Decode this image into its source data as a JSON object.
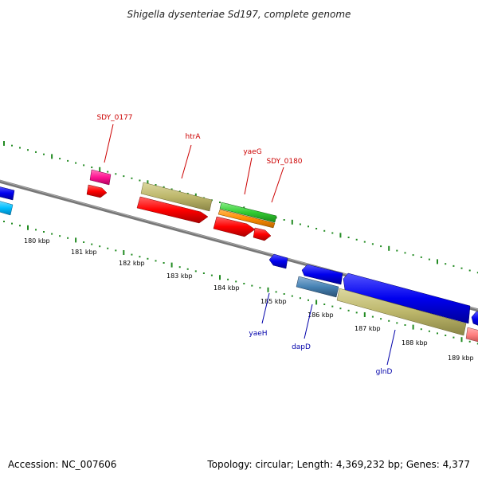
{
  "title": "Shigella dysenteriae Sd197, complete genome",
  "footer": {
    "accession": "Accession: NC_007606",
    "topology": "Topology: circular; Length: 4,369,232 bp; Genes: 4,377"
  },
  "kbp_labels": [
    "180 kbp",
    "181 kbp",
    "182 kbp",
    "183 kbp",
    "184 kbp",
    "185 kbp",
    "186 kbp",
    "187 kbp",
    "188 kbp",
    "189 kbp"
  ],
  "gene_labels_top": [
    "SDY_0177",
    "htrA",
    "yaeG",
    "SDY_0180"
  ],
  "gene_labels_bottom": [
    "yaeH",
    "dapD",
    "glnD"
  ],
  "colors": {
    "backbone": "#777777",
    "tick": "#228b22",
    "red": "#ff0000",
    "blue": "#0000ee",
    "khaki": "#bdb76b",
    "green": "#33cc33",
    "orange": "#ff8c00",
    "magenta": "#ff1493",
    "cyan": "#00bfff",
    "steelblue": "#4682b4",
    "pink": "#ff7f7f"
  }
}
